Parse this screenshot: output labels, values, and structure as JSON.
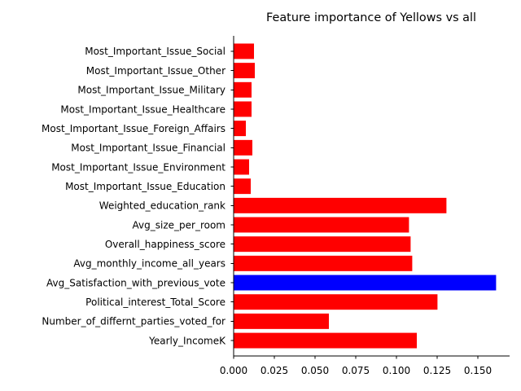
{
  "chart_data": {
    "type": "bar",
    "orientation": "horizontal",
    "title": "Feature importance of Yellows vs all",
    "xlabel": "",
    "ylabel": "",
    "xlim": [
      0,
      0.1695
    ],
    "xticks": [
      0.0,
      0.025,
      0.05,
      0.075,
      0.1,
      0.125,
      0.15
    ],
    "xtick_labels": [
      "0.000",
      "0.025",
      "0.050",
      "0.075",
      "0.100",
      "0.125",
      "0.150"
    ],
    "grid": false,
    "legend": "none",
    "colors": {
      "default": "#ff0000",
      "highlight": "#0000ff"
    },
    "categories": [
      "Yearly_IncomeK",
      "Number_of_differnt_parties_voted_for",
      "Political_interest_Total_Score",
      "Avg_Satisfaction_with_previous_vote",
      "Avg_monthly_income_all_years",
      "Overall_happiness_score",
      "Avg_size_per_room",
      "Weighted_education_rank",
      "Most_Important_Issue_Education",
      "Most_Important_Issue_Environment",
      "Most_Important_Issue_Financial",
      "Most_Important_Issue_Foreign_Affairs",
      "Most_Important_Issue_Healthcare",
      "Most_Important_Issue_Military",
      "Most_Important_Issue_Other",
      "Most_Important_Issue_Social"
    ],
    "values": [
      0.1125,
      0.0585,
      0.1252,
      0.1612,
      0.1097,
      0.1087,
      0.1077,
      0.1307,
      0.0105,
      0.0095,
      0.0115,
      0.0075,
      0.011,
      0.011,
      0.013,
      0.0125
    ],
    "highlight_index": 3
  }
}
